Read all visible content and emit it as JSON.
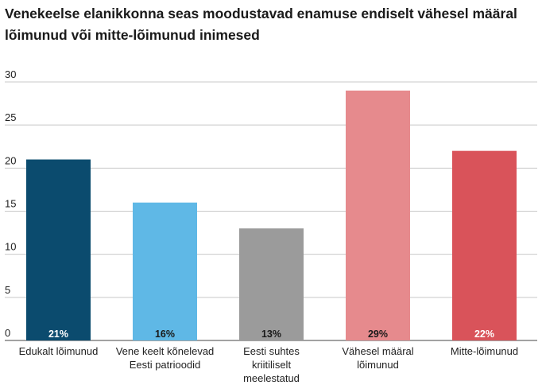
{
  "chart_data": {
    "type": "bar",
    "title": "Venekeelse elanikkonna seas moodustavad enamuse endiselt vähesel määral lõimunud või mitte-lõimunud inimesed",
    "categories": [
      [
        "Edukalt lõimunud"
      ],
      [
        "Vene keelt kõnelevad",
        "Eesti patrioodid"
      ],
      [
        "Eesti suhtes",
        "kriitiliselt",
        "meelestatud"
      ],
      [
        "Vähesel määral",
        "lõimunud"
      ],
      [
        "Mitte-lõimunud"
      ]
    ],
    "values": [
      21,
      16,
      13,
      29,
      22
    ],
    "data_labels": [
      "21%",
      "16%",
      "13%",
      "29%",
      "22%"
    ],
    "colors": [
      "#0b4b6e",
      "#5fb8e6",
      "#9b9b9b",
      "#e68a8d",
      "#d9535a"
    ],
    "label_colors": [
      "#ffffff",
      "#1a1a1a",
      "#1a1a1a",
      "#1a1a1a",
      "#ffffff"
    ],
    "yticks": [
      0,
      5,
      10,
      15,
      20,
      25,
      30
    ],
    "ylim": [
      0,
      30
    ],
    "grid": true,
    "legend": "none"
  }
}
